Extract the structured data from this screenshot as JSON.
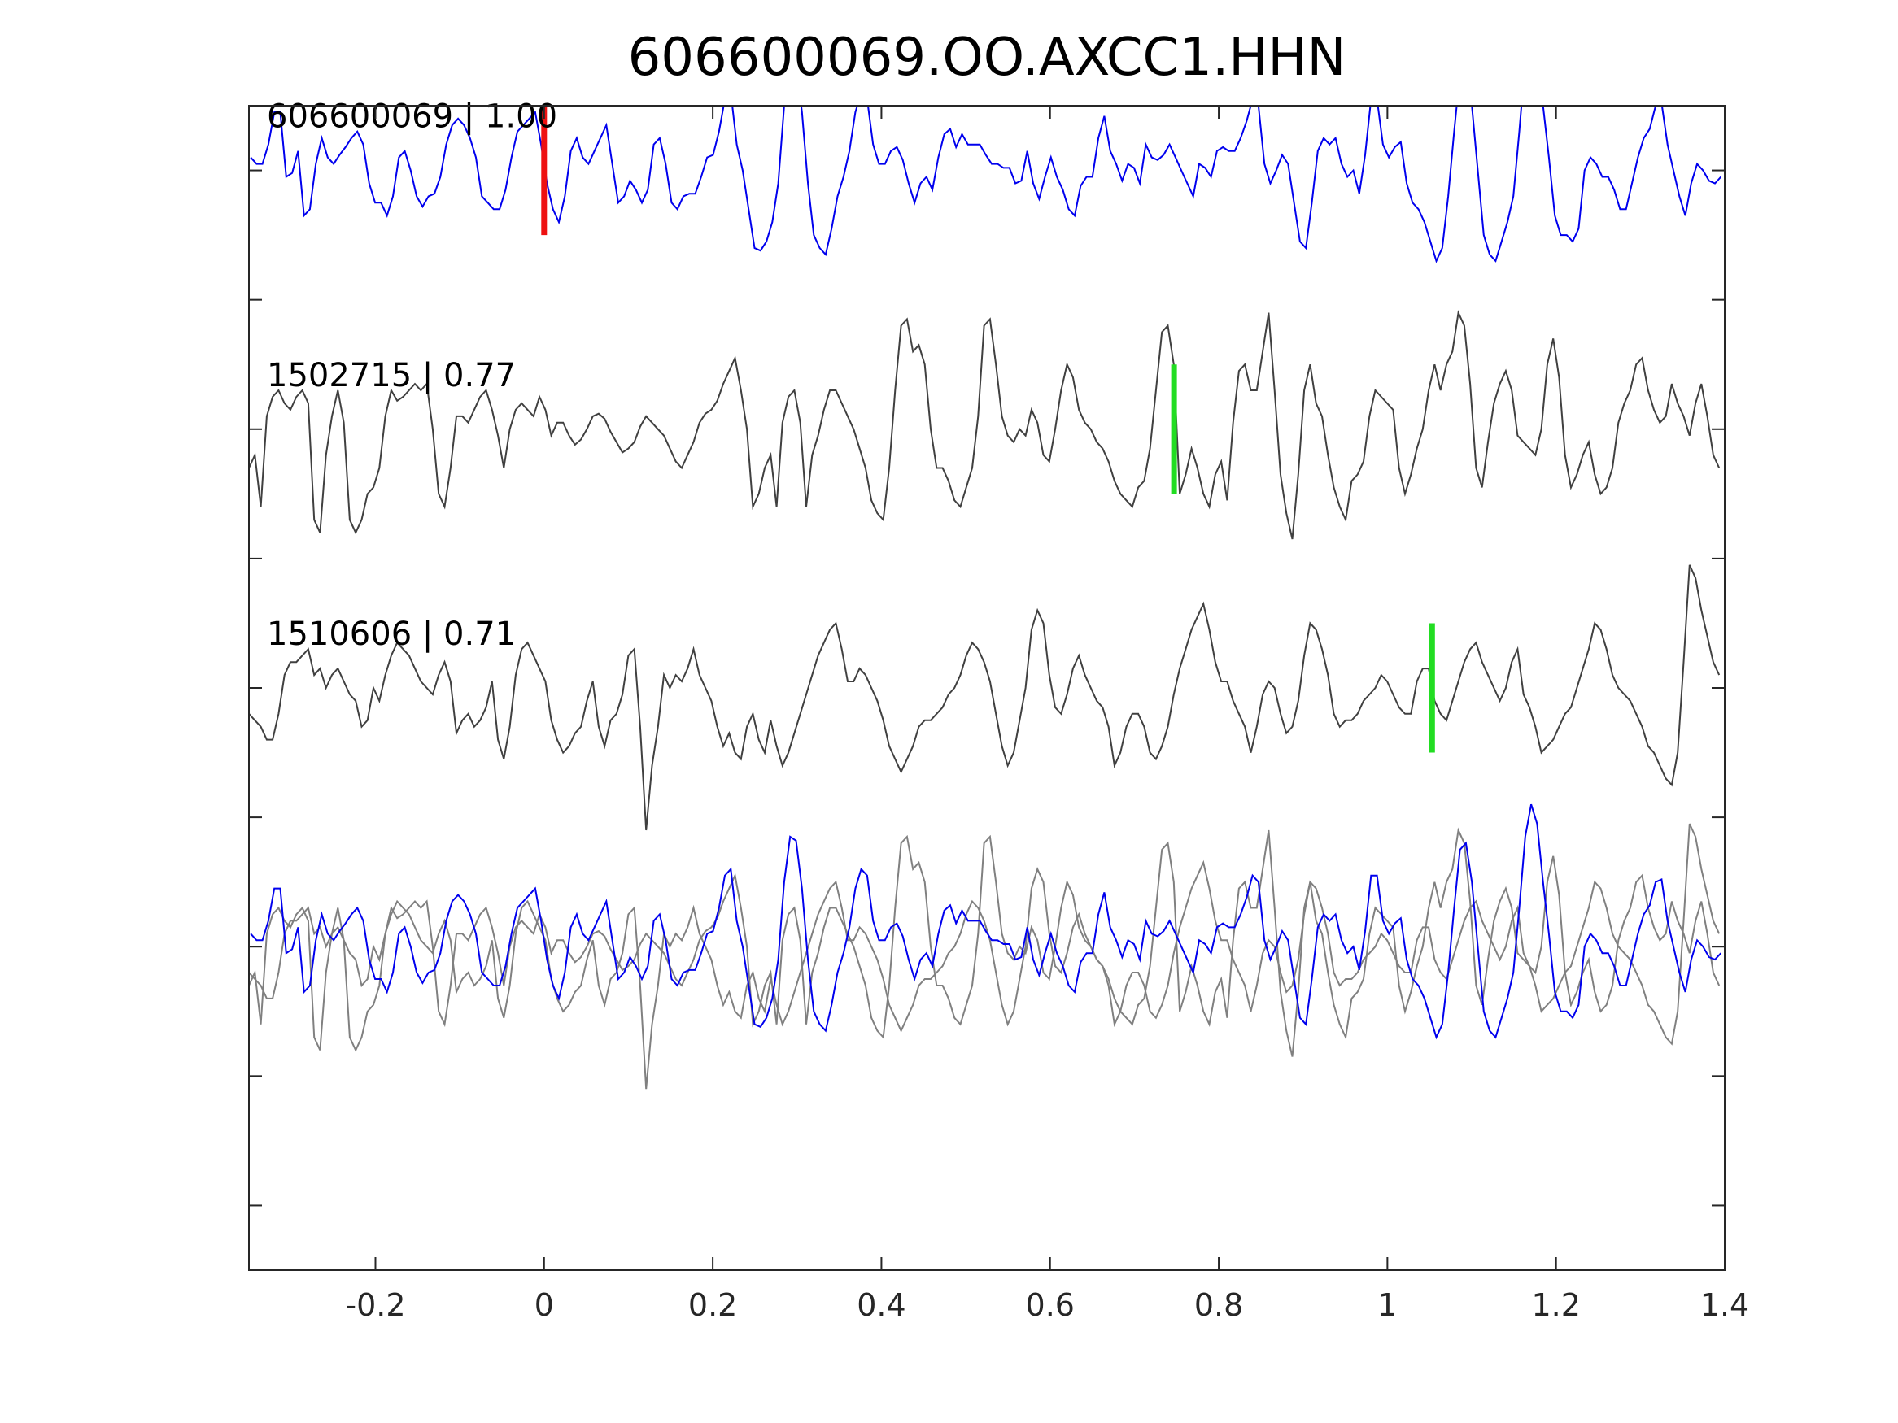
{
  "chart_data": {
    "type": "line",
    "title": "606600069.OO.AXCC1.HHN",
    "xlabel": "",
    "ylabel": "",
    "xlim": [
      -0.35,
      1.4
    ],
    "ylim": [
      -2.5,
      6.5
    ],
    "x_ticks": [
      -0.2,
      0,
      0.2,
      0.4,
      0.6,
      0.8,
      1,
      1.2,
      1.4
    ],
    "x_tick_labels": [
      "-0.2",
      "0",
      "0.2",
      "0.4",
      "0.6",
      "0.8",
      "1",
      "1.2",
      "1.4"
    ],
    "y_ticks": [
      -2,
      -1,
      0,
      1,
      2,
      3,
      4,
      5,
      6
    ],
    "y_tick_labels_visible": false,
    "grid": false,
    "colors": {
      "reference": "#0000ee",
      "match": "#404040",
      "overlay": "#808080",
      "ref_pick": "#ee1111",
      "match_pick": "#22dd22"
    },
    "series": [
      {
        "label": "606600069 | 1.00",
        "offset": 6,
        "color_key": "reference",
        "pick_x": 0.0,
        "pick_color_key": "ref_pick",
        "x_start": -0.348,
        "dx": 0.00703,
        "y": [
          0.1,
          0.05,
          0.05,
          0.2,
          0.45,
          0.45,
          -0.05,
          -0.02,
          0.15,
          -0.35,
          -0.3,
          0.05,
          0.25,
          0.1,
          0.05,
          0.12,
          0.18,
          0.25,
          0.3,
          0.2,
          -0.1,
          -0.25,
          -0.25,
          -0.35,
          -0.2,
          0.1,
          0.15,
          0.0,
          -0.2,
          -0.28,
          -0.2,
          -0.18,
          -0.05,
          0.2,
          0.35,
          0.4,
          0.35,
          0.25,
          0.1,
          -0.2,
          -0.25,
          -0.3,
          -0.3,
          -0.15,
          0.1,
          0.3,
          0.35,
          0.4,
          0.45,
          0.2,
          -0.1,
          -0.3,
          -0.4,
          -0.2,
          0.15,
          0.25,
          0.1,
          0.05,
          0.15,
          0.25,
          0.35,
          0.05,
          -0.25,
          -0.2,
          -0.08,
          -0.15,
          -0.25,
          -0.15,
          0.2,
          0.25,
          0.05,
          -0.25,
          -0.3,
          -0.2,
          -0.18,
          -0.18,
          -0.05,
          0.1,
          0.12,
          0.3,
          0.55,
          0.6,
          0.2,
          0.0,
          -0.3,
          -0.6,
          -0.62,
          -0.55,
          -0.4,
          -0.1,
          0.5,
          0.85,
          0.82,
          0.45,
          -0.1,
          -0.5,
          -0.6,
          -0.65,
          -0.45,
          -0.2,
          -0.05,
          0.15,
          0.45,
          0.6,
          0.55,
          0.2,
          0.05,
          0.05,
          0.15,
          0.18,
          0.08,
          -0.1,
          -0.25,
          -0.1,
          -0.05,
          -0.15,
          0.1,
          0.28,
          0.32,
          0.18,
          0.28,
          0.2,
          0.2,
          0.2,
          0.12,
          0.05,
          0.05,
          0.02,
          0.02,
          -0.1,
          -0.08,
          0.15,
          -0.1,
          -0.22,
          -0.05,
          0.1,
          -0.05,
          -0.15,
          -0.3,
          -0.35,
          -0.12,
          -0.05,
          -0.05,
          0.25,
          0.42,
          0.15,
          0.05,
          -0.08,
          0.05,
          0.02,
          -0.1,
          0.2,
          0.1,
          0.08,
          0.12,
          0.2,
          0.1,
          0.0,
          -0.1,
          -0.2,
          0.05,
          0.02,
          -0.05,
          0.15,
          0.18,
          0.15,
          0.15,
          0.25,
          0.38,
          0.55,
          0.5,
          0.05,
          -0.1,
          0.0,
          0.12,
          0.05,
          -0.25,
          -0.55,
          -0.6,
          -0.25,
          0.15,
          0.25,
          0.2,
          0.25,
          0.05,
          -0.05,
          0.0,
          -0.18,
          0.12,
          0.55,
          0.55,
          0.2,
          0.1,
          0.18,
          0.22,
          -0.1,
          -0.25,
          -0.3,
          -0.4,
          -0.55,
          -0.7,
          -0.6,
          -0.2,
          0.3,
          0.75,
          0.8,
          0.5,
          0.0,
          -0.5,
          -0.65,
          -0.7,
          -0.55,
          -0.4,
          -0.2,
          0.3,
          0.85,
          1.1,
          0.95,
          0.5,
          0.1,
          -0.35,
          -0.5,
          -0.5,
          -0.55,
          -0.45,
          0.0,
          0.1,
          0.05,
          -0.05,
          -0.05,
          -0.15,
          -0.3,
          -0.3,
          -0.1,
          0.1,
          0.25,
          0.32,
          0.5,
          0.52,
          0.2,
          0.0,
          -0.2,
          -0.35,
          -0.1,
          0.05,
          0.0,
          -0.08,
          -0.1,
          -0.05,
          0.15,
          0.3,
          0.25,
          0.0,
          0.05,
          0.15,
          0.3,
          0.12,
          -0.08,
          0.05,
          0.1,
          0.1,
          0.1,
          0.05,
          0.02,
          -0.1,
          -0.12,
          -0.1,
          -0.15,
          -0.05,
          0.05,
          0.15,
          0.35,
          0.25,
          -0.05,
          -0.2,
          -0.35,
          -0.35,
          -0.3,
          -0.1,
          0.2,
          0.3,
          0.2,
          0.05,
          -0.15,
          -0.35,
          -0.2,
          0.05,
          0.15
        ]
      },
      {
        "label": "1502715 | 0.77",
        "offset": 4,
        "color_key": "match",
        "pick_x": 0.747,
        "pick_color_key": "match_pick",
        "x_start": -0.35,
        "dx": 0.00703,
        "y": [
          -0.3,
          -0.2,
          -0.6,
          0.1,
          0.25,
          0.3,
          0.2,
          0.15,
          0.25,
          0.3,
          0.2,
          -0.7,
          -0.8,
          -0.2,
          0.1,
          0.3,
          0.05,
          -0.7,
          -0.8,
          -0.7,
          -0.5,
          -0.45,
          -0.3,
          0.1,
          0.3,
          0.22,
          0.25,
          0.3,
          0.35,
          0.3,
          0.35,
          0.0,
          -0.5,
          -0.6,
          -0.3,
          0.1,
          0.1,
          0.05,
          0.15,
          0.25,
          0.3,
          0.15,
          -0.05,
          -0.3,
          0.0,
          0.15,
          0.2,
          0.15,
          0.1,
          0.25,
          0.15,
          -0.05,
          0.05,
          0.05,
          -0.05,
          -0.12,
          -0.08,
          0.0,
          0.1,
          0.12,
          0.08,
          -0.02,
          -0.1,
          -0.18,
          -0.15,
          -0.1,
          0.02,
          0.1,
          0.05,
          0.0,
          -0.05,
          -0.15,
          -0.25,
          -0.3,
          -0.2,
          -0.1,
          0.05,
          0.12,
          0.15,
          0.22,
          0.35,
          0.45,
          0.55,
          0.3,
          0.0,
          -0.6,
          -0.5,
          -0.3,
          -0.2,
          -0.6,
          0.05,
          0.25,
          0.3,
          0.05,
          -0.6,
          -0.2,
          -0.05,
          0.15,
          0.3,
          0.3,
          0.2,
          0.1,
          0.0,
          -0.15,
          -0.3,
          -0.55,
          -0.65,
          -0.7,
          -0.3,
          0.3,
          0.8,
          0.85,
          0.6,
          0.65,
          0.5,
          0.0,
          -0.3,
          -0.3,
          -0.4,
          -0.55,
          -0.6,
          -0.45,
          -0.3,
          0.1,
          0.8,
          0.85,
          0.5,
          0.1,
          -0.05,
          -0.1,
          0.0,
          -0.05,
          0.15,
          0.05,
          -0.2,
          -0.25,
          0.0,
          0.3,
          0.5,
          0.4,
          0.15,
          0.05,
          0.0,
          -0.1,
          -0.15,
          -0.25,
          -0.4,
          -0.5,
          -0.55,
          -0.6,
          -0.45,
          -0.4,
          -0.15,
          0.3,
          0.75,
          0.8,
          0.5,
          -0.5,
          -0.35,
          -0.15,
          -0.3,
          -0.5,
          -0.6,
          -0.35,
          -0.25,
          -0.55,
          0.05,
          0.45,
          0.5,
          0.3,
          0.3,
          0.6,
          0.9,
          0.3,
          -0.35,
          -0.65,
          -0.85,
          -0.35,
          0.3,
          0.5,
          0.2,
          0.1,
          -0.2,
          -0.45,
          -0.6,
          -0.7,
          -0.4,
          -0.35,
          -0.25,
          0.1,
          0.3,
          0.25,
          0.2,
          0.15,
          -0.3,
          -0.5,
          -0.35,
          -0.15,
          0.0,
          0.3,
          0.5,
          0.3,
          0.5,
          0.6,
          0.9,
          0.8,
          0.35,
          -0.3,
          -0.45,
          -0.1,
          0.2,
          0.35,
          0.45,
          0.3,
          -0.05,
          -0.1,
          -0.15,
          -0.2,
          0.0,
          0.5,
          0.7,
          0.4,
          -0.2,
          -0.45,
          -0.35,
          -0.2,
          -0.1,
          -0.35,
          -0.5,
          -0.45,
          -0.3,
          0.05,
          0.2,
          0.3,
          0.5,
          0.55,
          0.3,
          0.15,
          0.05,
          0.1,
          0.35,
          0.2,
          0.1,
          -0.05,
          0.2,
          0.35,
          0.1,
          -0.2,
          -0.3,
          -0.45,
          -0.5,
          -0.55,
          -0.7,
          -0.85,
          -0.9,
          -0.4,
          0.15,
          0.1,
          -0.55,
          -0.75,
          -0.55,
          -0.35,
          -0.2,
          0.0,
          0.3,
          0.45,
          0.6,
          0.75,
          0.7,
          0.3,
          0.05,
          0.25,
          0.35,
          0.55,
          0.6,
          0.5,
          0.3,
          0.3,
          0.45,
          0.25,
          0.1,
          0.15,
          0.25,
          0.3,
          0.4,
          0.2,
          -0.5,
          -0.7,
          -0.5,
          -0.3,
          0.1,
          0.25,
          0.3,
          0.35,
          0.45,
          0.5,
          0.55,
          0.55,
          0.6,
          0.25,
          0.25
        ]
      },
      {
        "label": "1510606 | 0.71",
        "offset": 2,
        "color_key": "match",
        "pick_x": 1.053,
        "pick_color_key": "match_pick",
        "x_start": -0.35,
        "dx": 0.00703,
        "y": [
          -0.2,
          -0.25,
          -0.3,
          -0.4,
          -0.4,
          -0.2,
          0.1,
          0.2,
          0.2,
          0.25,
          0.3,
          0.1,
          0.15,
          0.0,
          0.1,
          0.15,
          0.05,
          -0.05,
          -0.1,
          -0.3,
          -0.25,
          0.0,
          -0.1,
          0.1,
          0.25,
          0.35,
          0.3,
          0.25,
          0.15,
          0.05,
          0.0,
          -0.05,
          0.1,
          0.2,
          0.05,
          -0.35,
          -0.25,
          -0.2,
          -0.3,
          -0.25,
          -0.15,
          0.05,
          -0.4,
          -0.55,
          -0.3,
          0.1,
          0.3,
          0.35,
          0.25,
          0.15,
          0.05,
          -0.25,
          -0.4,
          -0.5,
          -0.45,
          -0.35,
          -0.3,
          -0.1,
          0.05,
          -0.3,
          -0.45,
          -0.25,
          -0.2,
          -0.05,
          0.25,
          0.3,
          -0.3,
          -1.1,
          -0.6,
          -0.3,
          0.1,
          0.0,
          0.1,
          0.05,
          0.15,
          0.3,
          0.1,
          0.0,
          -0.1,
          -0.3,
          -0.45,
          -0.35,
          -0.5,
          -0.55,
          -0.3,
          -0.2,
          -0.4,
          -0.5,
          -0.25,
          -0.45,
          -0.6,
          -0.5,
          -0.35,
          -0.2,
          -0.05,
          0.1,
          0.25,
          0.35,
          0.45,
          0.5,
          0.3,
          0.05,
          0.05,
          0.15,
          0.1,
          0.0,
          -0.1,
          -0.25,
          -0.45,
          -0.55,
          -0.65,
          -0.55,
          -0.45,
          -0.3,
          -0.25,
          -0.25,
          -0.2,
          -0.15,
          -0.05,
          0.0,
          0.1,
          0.25,
          0.35,
          0.3,
          0.2,
          0.05,
          -0.2,
          -0.45,
          -0.6,
          -0.5,
          -0.25,
          0.0,
          0.45,
          0.6,
          0.5,
          0.1,
          -0.15,
          -0.2,
          -0.05,
          0.15,
          0.25,
          0.1,
          0.0,
          -0.1,
          -0.15,
          -0.3,
          -0.6,
          -0.5,
          -0.3,
          -0.2,
          -0.2,
          -0.3,
          -0.5,
          -0.55,
          -0.45,
          -0.3,
          -0.05,
          0.15,
          0.3,
          0.45,
          0.55,
          0.65,
          0.45,
          0.2,
          0.05,
          0.05,
          -0.1,
          -0.2,
          -0.3,
          -0.5,
          -0.3,
          -0.05,
          0.05,
          0.0,
          -0.2,
          -0.35,
          -0.3,
          -0.1,
          0.25,
          0.5,
          0.45,
          0.3,
          0.1,
          -0.2,
          -0.3,
          -0.25,
          -0.25,
          -0.2,
          -0.1,
          -0.05,
          0.0,
          0.1,
          0.05,
          -0.05,
          -0.15,
          -0.2,
          -0.2,
          0.05,
          0.15,
          0.15,
          -0.1,
          -0.2,
          -0.25,
          -0.1,
          0.05,
          0.2,
          0.3,
          0.35,
          0.2,
          0.1,
          0.0,
          -0.1,
          0.0,
          0.2,
          0.3,
          -0.05,
          -0.15,
          -0.3,
          -0.5,
          -0.45,
          -0.4,
          -0.3,
          -0.2,
          -0.15,
          0.0,
          0.15,
          0.3,
          0.5,
          0.45,
          0.3,
          0.1,
          0.0,
          -0.05,
          -0.1,
          -0.2,
          -0.3,
          -0.45,
          -0.5,
          -0.6,
          -0.7,
          -0.75,
          -0.5,
          0.2,
          0.95,
          0.85,
          0.6,
          0.4,
          0.2,
          0.1,
          0.05,
          -0.1,
          -0.25,
          -0.3,
          -0.35,
          -0.4,
          -0.5,
          -0.55,
          -0.5,
          -0.45,
          -0.35,
          -0.25,
          -0.1,
          0.05,
          0.15,
          0.3,
          0.2,
          0.05,
          -0.1,
          -0.15,
          -0.25,
          -0.3,
          -0.2,
          -0.1,
          0.0,
          0.1,
          0.2,
          0.3,
          0.35,
          0.2,
          0.05,
          -0.05,
          -0.1,
          -0.15,
          -0.1,
          0.0,
          0.1,
          0.2,
          0.3,
          0.45,
          0.5,
          0.55,
          0.5,
          0.45,
          0.35,
          0.25,
          0.15,
          0.1,
          0.05,
          0.15,
          0.3,
          0.45,
          0.55,
          0.6,
          0.6
        ]
      }
    ],
    "overlay": {
      "offset": 0,
      "description_hidden": true
    }
  }
}
